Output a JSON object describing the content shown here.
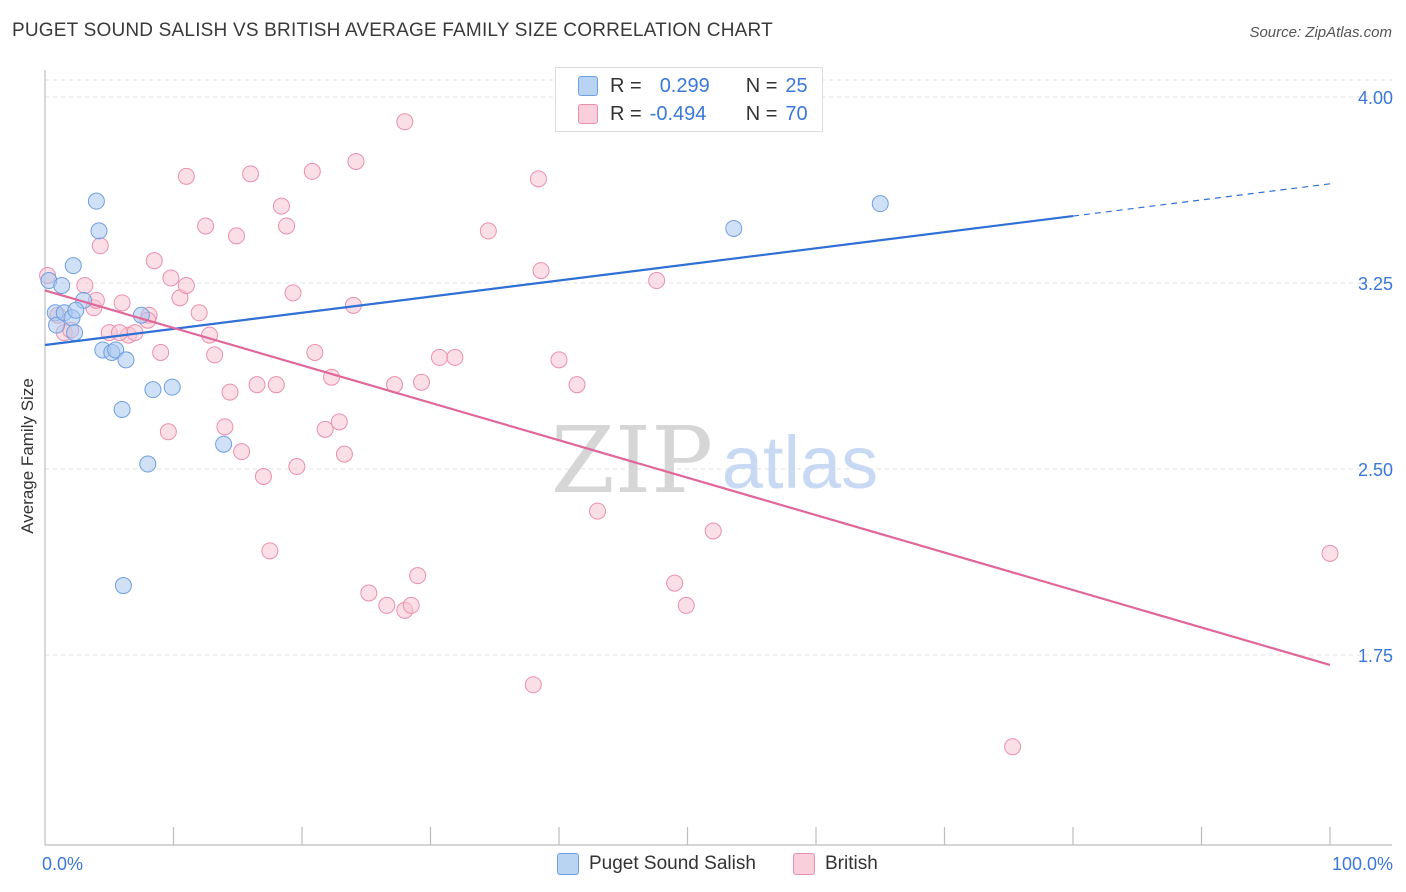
{
  "title": "PUGET SOUND SALISH VS BRITISH AVERAGE FAMILY SIZE CORRELATION CHART",
  "source": "Source: ZipAtlas.com",
  "watermark": {
    "zip": "ZIP",
    "atlas": "atlas"
  },
  "legend": {
    "rows": [
      {
        "r_label": "R =",
        "r_value": "0.299",
        "n_label": "N =",
        "n_value": "25"
      },
      {
        "r_label": "R =",
        "r_value": "-0.494",
        "n_label": "N =",
        "n_value": "70"
      }
    ]
  },
  "colors": {
    "blue_fill": "#a9c8f0",
    "blue_stroke": "#6f9fe0",
    "blue_line": "#2f6fd6",
    "pink_fill": "#f7c4d4",
    "pink_stroke": "#eb8fae",
    "pink_line": "#e0679a",
    "tick_label": "#3b78d8",
    "grid": "#e0e0e0"
  },
  "chart_data": {
    "type": "scatter",
    "title": "PUGET SOUND SALISH VS BRITISH AVERAGE FAMILY SIZE CORRELATION CHART",
    "xlabel": "",
    "ylabel": "Average Family Size",
    "xlim": [
      0,
      100
    ],
    "ylim": [
      1.0,
      4.2
    ],
    "x_tick_labels": [
      "0.0%",
      "100.0%"
    ],
    "y_ticks": [
      1.75,
      2.5,
      3.25,
      4.0
    ],
    "y_tick_labels": [
      "1.75",
      "2.50",
      "3.25",
      "4.00"
    ],
    "grid": true,
    "series": [
      {
        "name": "Puget Sound Salish",
        "color": "#a9c8f0",
        "points": [
          [
            0.3,
            3.26
          ],
          [
            1.3,
            3.24
          ],
          [
            0.8,
            3.13
          ],
          [
            0.9,
            3.08
          ],
          [
            1.5,
            3.13
          ],
          [
            2.2,
            3.32
          ],
          [
            2.1,
            3.11
          ],
          [
            3.0,
            3.18
          ],
          [
            2.4,
            3.14
          ],
          [
            2.3,
            3.05
          ],
          [
            4.0,
            3.58
          ],
          [
            4.2,
            3.46
          ],
          [
            4.5,
            2.98
          ],
          [
            5.2,
            2.97
          ],
          [
            5.5,
            2.98
          ],
          [
            6.3,
            2.94
          ],
          [
            7.5,
            3.12
          ],
          [
            6.0,
            2.74
          ],
          [
            8.4,
            2.82
          ],
          [
            9.9,
            2.83
          ],
          [
            8.0,
            2.52
          ],
          [
            6.1,
            2.03
          ],
          [
            13.9,
            2.6
          ],
          [
            53.6,
            3.47
          ],
          [
            65.0,
            3.57
          ]
        ],
        "trend": {
          "x": [
            0,
            80
          ],
          "y": [
            3.0,
            3.52
          ]
        },
        "trend_dashed": {
          "x": [
            80,
            100
          ],
          "y": [
            3.52,
            3.65
          ]
        }
      },
      {
        "name": "British",
        "color": "#f7c4d4",
        "points": [
          [
            0.2,
            3.28
          ],
          [
            1.0,
            3.12
          ],
          [
            1.5,
            3.05
          ],
          [
            2.0,
            3.06
          ],
          [
            3.1,
            3.24
          ],
          [
            3.8,
            3.15
          ],
          [
            4.0,
            3.18
          ],
          [
            4.3,
            3.4
          ],
          [
            5.0,
            3.05
          ],
          [
            6.0,
            3.17
          ],
          [
            6.5,
            3.04
          ],
          [
            7.0,
            3.05
          ],
          [
            8.1,
            3.12
          ],
          [
            8.0,
            3.1
          ],
          [
            8.5,
            3.34
          ],
          [
            9.0,
            2.97
          ],
          [
            9.6,
            2.65
          ],
          [
            10.5,
            3.19
          ],
          [
            11.0,
            3.24
          ],
          [
            11.0,
            3.68
          ],
          [
            12.0,
            3.13
          ],
          [
            12.5,
            3.48
          ],
          [
            12.8,
            3.04
          ],
          [
            13.2,
            2.96
          ],
          [
            14.0,
            2.67
          ],
          [
            14.4,
            2.81
          ],
          [
            14.9,
            3.44
          ],
          [
            15.3,
            2.57
          ],
          [
            16.0,
            3.69
          ],
          [
            16.5,
            2.84
          ],
          [
            17.0,
            2.47
          ],
          [
            17.5,
            2.17
          ],
          [
            18.0,
            2.84
          ],
          [
            18.4,
            3.56
          ],
          [
            18.8,
            3.48
          ],
          [
            19.3,
            3.21
          ],
          [
            19.6,
            2.51
          ],
          [
            20.8,
            3.7
          ],
          [
            21.8,
            2.66
          ],
          [
            22.3,
            2.87
          ],
          [
            22.9,
            2.69
          ],
          [
            23.3,
            2.56
          ],
          [
            24.0,
            3.16
          ],
          [
            24.2,
            3.74
          ],
          [
            25.2,
            2.0
          ],
          [
            26.6,
            1.95
          ],
          [
            27.2,
            2.84
          ],
          [
            28.0,
            3.9
          ],
          [
            28.0,
            1.93
          ],
          [
            28.5,
            1.95
          ],
          [
            29.3,
            2.85
          ],
          [
            29.0,
            2.07
          ],
          [
            30.7,
            2.95
          ],
          [
            31.9,
            2.95
          ],
          [
            34.5,
            3.46
          ],
          [
            38.0,
            1.63
          ],
          [
            38.6,
            3.3
          ],
          [
            38.4,
            3.67
          ],
          [
            40.0,
            2.94
          ],
          [
            41.4,
            2.84
          ],
          [
            43.0,
            2.33
          ],
          [
            49.0,
            2.04
          ],
          [
            47.6,
            3.26
          ],
          [
            49.9,
            1.95
          ],
          [
            52.0,
            2.25
          ],
          [
            75.3,
            1.38
          ],
          [
            100.0,
            2.16
          ],
          [
            5.8,
            3.05
          ],
          [
            21.0,
            2.97
          ],
          [
            9.8,
            3.27
          ]
        ],
        "trend": {
          "x": [
            0,
            100
          ],
          "y": [
            3.22,
            1.71
          ]
        }
      }
    ]
  },
  "bottom_legend": [
    "Puget Sound Salish",
    "British"
  ]
}
